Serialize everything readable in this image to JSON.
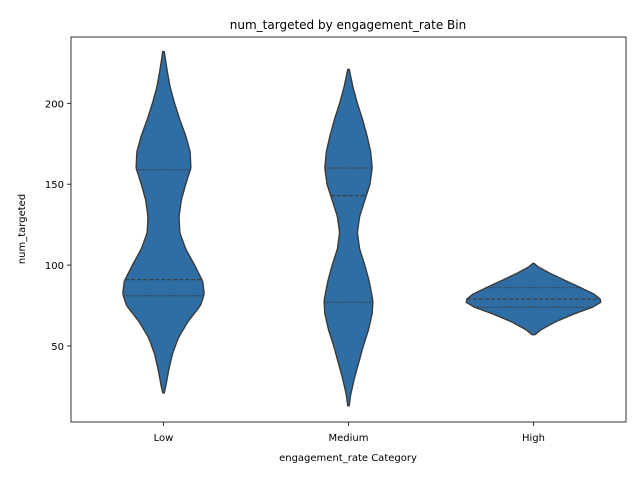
{
  "chart_data": {
    "type": "violin",
    "title": "num_targeted by engagement_rate Bin",
    "xlabel": "engagement_rate Category",
    "ylabel": "num_targeted",
    "categories": [
      "Low",
      "Medium",
      "High"
    ],
    "ylim": [
      3,
      241
    ],
    "yticks": [
      50,
      100,
      150,
      200
    ],
    "grid": false,
    "fill_color": "#2f6ea5",
    "edge_color": "#3b3b3b",
    "inner": "quartile",
    "violins": [
      {
        "category": "Low",
        "min": 21,
        "max": 232,
        "quartiles": [
          81,
          91,
          159
        ],
        "profile": [
          [
            21,
            0.01
          ],
          [
            25,
            0.03
          ],
          [
            35,
            0.07
          ],
          [
            45,
            0.12
          ],
          [
            55,
            0.2
          ],
          [
            65,
            0.33
          ],
          [
            75,
            0.5
          ],
          [
            82,
            0.55
          ],
          [
            90,
            0.53
          ],
          [
            100,
            0.42
          ],
          [
            110,
            0.3
          ],
          [
            120,
            0.22
          ],
          [
            130,
            0.21
          ],
          [
            140,
            0.24
          ],
          [
            150,
            0.3
          ],
          [
            160,
            0.37
          ],
          [
            170,
            0.36
          ],
          [
            180,
            0.3
          ],
          [
            190,
            0.22
          ],
          [
            200,
            0.15
          ],
          [
            210,
            0.09
          ],
          [
            220,
            0.05
          ],
          [
            232,
            0.01
          ]
        ]
      },
      {
        "category": "Medium",
        "min": 13,
        "max": 221,
        "quartiles": [
          77,
          143,
          160
        ],
        "profile": [
          [
            13,
            0.01
          ],
          [
            20,
            0.03
          ],
          [
            30,
            0.08
          ],
          [
            40,
            0.14
          ],
          [
            50,
            0.2
          ],
          [
            60,
            0.27
          ],
          [
            70,
            0.32
          ],
          [
            78,
            0.33
          ],
          [
            90,
            0.28
          ],
          [
            100,
            0.22
          ],
          [
            110,
            0.15
          ],
          [
            120,
            0.12
          ],
          [
            130,
            0.15
          ],
          [
            140,
            0.22
          ],
          [
            150,
            0.29
          ],
          [
            160,
            0.32
          ],
          [
            170,
            0.3
          ],
          [
            180,
            0.25
          ],
          [
            190,
            0.19
          ],
          [
            200,
            0.12
          ],
          [
            210,
            0.06
          ],
          [
            221,
            0.01
          ]
        ]
      },
      {
        "category": "High",
        "min": 57,
        "max": 101,
        "quartiles": [
          74,
          79,
          86
        ],
        "profile": [
          [
            57,
            0.02
          ],
          [
            60,
            0.1
          ],
          [
            65,
            0.3
          ],
          [
            70,
            0.56
          ],
          [
            74,
            0.8
          ],
          [
            77,
            0.91
          ],
          [
            79,
            0.9
          ],
          [
            82,
            0.82
          ],
          [
            86,
            0.64
          ],
          [
            90,
            0.45
          ],
          [
            95,
            0.22
          ],
          [
            99,
            0.06
          ],
          [
            101,
            0.01
          ]
        ]
      }
    ]
  }
}
